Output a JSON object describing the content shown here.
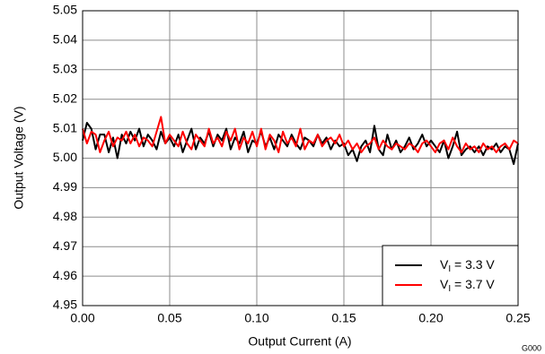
{
  "chart_data": {
    "type": "line",
    "xlabel": "Output Current (A)",
    "ylabel": "Output Voltage (V)",
    "annotation": "G000",
    "xlim": [
      0,
      0.25
    ],
    "ylim": [
      4.95,
      5.05
    ],
    "xticks": [
      {
        "value": 0,
        "label": "0.00"
      },
      0.05,
      {
        "value": 0.1,
        "label": "0.10"
      },
      0.15,
      {
        "value": 0.2,
        "label": "0.20"
      },
      0.25
    ],
    "yticks": [
      4.95,
      4.96,
      4.97,
      4.98,
      4.99,
      {
        "value": 5,
        "label": "5.00"
      },
      5.01,
      5.02,
      5.03,
      5.04,
      5.05
    ],
    "grid": true,
    "legend": "lower right",
    "x": [
      0,
      0.0025,
      0.005,
      0.0075,
      0.01,
      0.0125,
      0.015,
      0.0175,
      0.02,
      0.0225,
      0.025,
      0.0275,
      0.03,
      0.0325,
      0.035,
      0.0375,
      0.04,
      0.0425,
      0.045,
      0.0475,
      0.05,
      0.0525,
      0.055,
      0.0575,
      0.06,
      0.0625,
      0.065,
      0.0675,
      0.07,
      0.0725,
      0.075,
      0.0775,
      0.08,
      0.0825,
      0.085,
      0.0875,
      0.09,
      0.0925,
      0.095,
      0.0975,
      0.1,
      0.1025,
      0.105,
      0.1075,
      0.11,
      0.1125,
      0.115,
      0.1175,
      0.12,
      0.1225,
      0.125,
      0.1275,
      0.13,
      0.1325,
      0.135,
      0.1375,
      0.14,
      0.1425,
      0.145,
      0.1475,
      0.15,
      0.1525,
      0.155,
      0.1575,
      0.16,
      0.1625,
      0.165,
      0.1675,
      0.17,
      0.1725,
      0.175,
      0.1775,
      0.18,
      0.1825,
      0.185,
      0.1875,
      0.19,
      0.1925,
      0.195,
      0.1975,
      0.2,
      0.2025,
      0.205,
      0.2075,
      0.21,
      0.2125,
      0.215,
      0.2175,
      0.22,
      0.2225,
      0.225,
      0.2275,
      0.23,
      0.2325,
      0.235,
      0.2375,
      0.24,
      0.2425,
      0.245,
      0.2475,
      0.25
    ],
    "series": [
      {
        "name": "VI = 3.3 V",
        "color": "#000000",
        "values": [
          5.006,
          5.012,
          5.01,
          5.003,
          5.008,
          5.008,
          5.002,
          5.007,
          5.0,
          5.008,
          5.005,
          5.009,
          5.006,
          5.01,
          5.004,
          5.008,
          5.006,
          5.003,
          5.009,
          5.005,
          5.007,
          5.004,
          5.008,
          5.002,
          5.006,
          5.01,
          5.003,
          5.007,
          5.005,
          5.009,
          5.004,
          5.008,
          5.006,
          5.01,
          5.003,
          5.007,
          5.005,
          5.009,
          5.002,
          5.006,
          5.005,
          5.009,
          5.004,
          5.007,
          5.003,
          5.008,
          5.006,
          5.004,
          5.008,
          5.005,
          5.003,
          5.007,
          5.006,
          5.004,
          5.008,
          5.005,
          5.007,
          5.003,
          5.006,
          5.004,
          5.005,
          5.001,
          5.003,
          4.999,
          5.004,
          5.006,
          5.002,
          5.011,
          5.003,
          5.001,
          5.008,
          5.003,
          5.006,
          5.002,
          5.004,
          5.007,
          5.003,
          5.005,
          5.008,
          5.004,
          5.006,
          5.004,
          5.002,
          5.006,
          5.0,
          5.004,
          5.009,
          5.001,
          5.003,
          5.004,
          5.002,
          5.004,
          5.001,
          5.004,
          5.003,
          5.005,
          5.002,
          5.004,
          5.003,
          4.998,
          5.005
        ]
      },
      {
        "name": "VI = 3.7 V",
        "color": "#ff0000",
        "values": [
          5.01,
          5.005,
          5.009,
          5.008,
          5.002,
          5.006,
          5.009,
          5.004,
          5.007,
          5.006,
          5.009,
          5.005,
          5.008,
          5.004,
          5.007,
          5.006,
          5.004,
          5.009,
          5.014,
          5.005,
          5.008,
          5.006,
          5.004,
          5.009,
          5.005,
          5.003,
          5.008,
          5.006,
          5.004,
          5.01,
          5.005,
          5.007,
          5.004,
          5.009,
          5.006,
          5.01,
          5.003,
          5.007,
          5.005,
          5.009,
          5.004,
          5.01,
          5.003,
          5.008,
          5.006,
          5.002,
          5.009,
          5.005,
          5.007,
          5.004,
          5.01,
          5.003,
          5.006,
          5.005,
          5.008,
          5.004,
          5.006,
          5.007,
          5.005,
          5.008,
          5.004,
          5.006,
          5.003,
          5.005,
          5.002,
          5.004,
          5.005,
          5.007,
          5.003,
          5.006,
          5.004,
          5.003,
          5.005,
          5.004,
          5.003,
          5.005,
          5.004,
          5.002,
          5.005,
          5.006,
          5.004,
          5.002,
          5.005,
          5.006,
          5.003,
          5.007,
          5.004,
          5.002,
          5.005,
          5.003,
          5.004,
          5.002,
          5.005,
          5.003,
          5.004,
          5.002,
          5.004,
          5.005,
          5.003,
          5.006,
          5.005
        ]
      }
    ]
  }
}
